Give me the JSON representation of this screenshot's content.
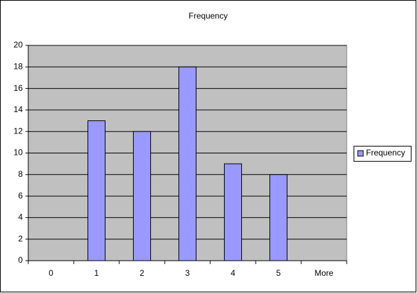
{
  "chart_data": {
    "type": "bar",
    "title": "Frequency",
    "categories": [
      "0",
      "1",
      "2",
      "3",
      "4",
      "5",
      "More"
    ],
    "series": [
      {
        "name": "Frequency",
        "color": "#9999ff",
        "values": [
          0,
          13,
          12,
          18,
          9,
          8,
          0
        ]
      }
    ],
    "ylim": [
      0,
      20
    ],
    "yticks": [
      0,
      2,
      4,
      6,
      8,
      10,
      12,
      14,
      16,
      18,
      20
    ],
    "grid": true,
    "legend": "right"
  }
}
